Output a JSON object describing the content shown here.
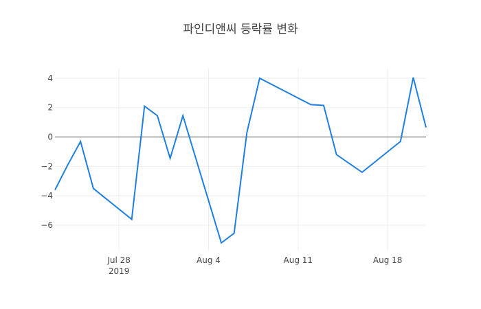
{
  "chart_data": {
    "type": "line",
    "title": "파인디앤씨 등락률 변화",
    "x": [
      "2019-07-23",
      "2019-07-24",
      "2019-07-25",
      "2019-07-26",
      "2019-07-29",
      "2019-07-30",
      "2019-07-31",
      "2019-08-01",
      "2019-08-02",
      "2019-08-05",
      "2019-08-06",
      "2019-08-07",
      "2019-08-08",
      "2019-08-12",
      "2019-08-13",
      "2019-08-14",
      "2019-08-16",
      "2019-08-19",
      "2019-08-20",
      "2019-08-21"
    ],
    "series": [
      {
        "name": "등락률",
        "color": "#1f7fe0",
        "values": [
          -3.6,
          -1.9,
          -0.3,
          -3.5,
          -5.6,
          2.1,
          1.45,
          -1.45,
          1.45,
          -7.2,
          -6.55,
          0.3,
          4.0,
          2.2,
          2.15,
          -1.2,
          -2.4,
          -0.3,
          4.05,
          0.65
        ]
      }
    ],
    "xlim": [
      "2019-07-23",
      "2019-08-21"
    ],
    "xticks": [
      {
        "value": "2019-07-28",
        "label": "Jul 28"
      },
      {
        "value": "2019-08-04",
        "label": "Aug 4"
      },
      {
        "value": "2019-08-11",
        "label": "Aug 11"
      },
      {
        "value": "2019-08-18",
        "label": "Aug 18"
      }
    ],
    "x_year_label": "2019",
    "ylim": [
      -7.73,
      4.65
    ],
    "yticks": [
      {
        "value": -6,
        "label": "−6"
      },
      {
        "value": -4,
        "label": "−4"
      },
      {
        "value": -2,
        "label": "−2"
      },
      0,
      2,
      4
    ],
    "grid": true
  }
}
